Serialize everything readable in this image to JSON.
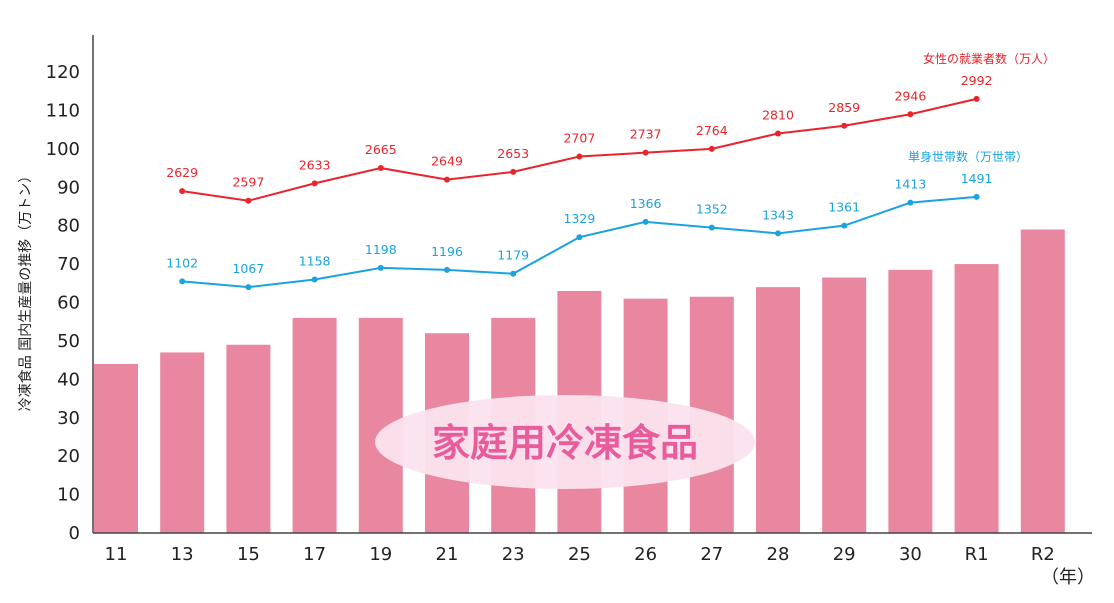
{
  "chart_data": {
    "type": "bar",
    "categories": [
      "11",
      "13",
      "15",
      "17",
      "19",
      "21",
      "23",
      "25",
      "26",
      "27",
      "28",
      "29",
      "30",
      "R1",
      "R2"
    ],
    "values": [
      44,
      47,
      49,
      56,
      56,
      52,
      56,
      63,
      61,
      61.5,
      64,
      66.5,
      68.5,
      70,
      79
    ],
    "ylabel": "冷凍食品 国内生産量の推移（万トン）",
    "x_unit": "（年）",
    "overlay_label": "家庭用冷凍食品",
    "yticks": [
      0,
      10,
      20,
      30,
      40,
      50,
      60,
      70,
      80,
      90,
      100,
      110,
      120
    ],
    "ylim": [
      0,
      120
    ],
    "grid": false,
    "colors": {
      "bars": "#e8879f",
      "women": "#e8242c",
      "single": "#1aa3e0",
      "overlay_ellipse": "#fbe3ee"
    },
    "lines": [
      {
        "name": "女性の就業者数（万人）",
        "categories": [
          "13",
          "15",
          "17",
          "19",
          "21",
          "23",
          "25",
          "26",
          "27",
          "28",
          "29",
          "30",
          "R1"
        ],
        "labels": [
          "2629",
          "2597",
          "2633",
          "2665",
          "2649",
          "2653",
          "2707",
          "2737",
          "2764",
          "2810",
          "2859",
          "2946",
          "2992"
        ],
        "plot_y": [
          89,
          86.5,
          91,
          95,
          92,
          94,
          98,
          99,
          100,
          104,
          106,
          109,
          113
        ]
      },
      {
        "name": "単身世帯数（万世帯）",
        "categories": [
          "13",
          "15",
          "17",
          "19",
          "21",
          "23",
          "25",
          "26",
          "27",
          "28",
          "29",
          "30",
          "R1"
        ],
        "labels": [
          "1102",
          "1067",
          "1158",
          "1198",
          "1196",
          "1179",
          "1329",
          "1366",
          "1352",
          "1343",
          "1361",
          "1413",
          "1491"
        ],
        "plot_y": [
          65.5,
          64,
          66,
          69,
          68.5,
          67.5,
          77,
          81,
          79.5,
          78,
          80,
          86,
          87.5
        ]
      }
    ]
  }
}
